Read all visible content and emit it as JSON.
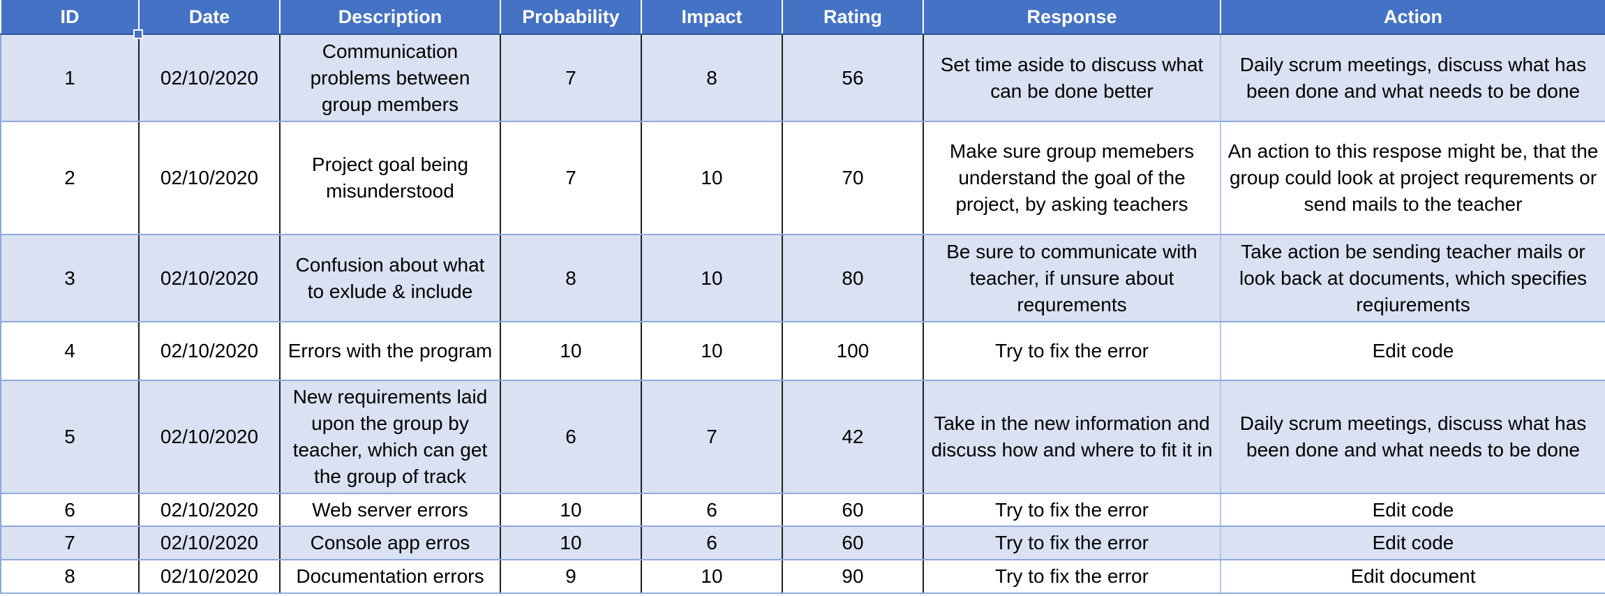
{
  "headers": [
    "ID",
    "Date",
    "Description",
    "Probability",
    "Impact",
    "Rating",
    "Response",
    "Action"
  ],
  "rows": [
    {
      "id": "1",
      "date": "02/10/2020",
      "description": "Communication problems between group members",
      "probability": "7",
      "impact": "8",
      "rating": "56",
      "response": "Set time aside to discuss what can be done better",
      "action": "Daily scrum meetings, discuss what has been done and what needs to be done"
    },
    {
      "id": "2",
      "date": "02/10/2020",
      "description": "Project goal being misunderstood",
      "probability": "7",
      "impact": "10",
      "rating": "70",
      "response": "Make sure group memebers understand the goal of the project, by asking teachers",
      "action": "An action to this respose might be, that the group could look at project requrements or send mails to the teacher"
    },
    {
      "id": "3",
      "date": "02/10/2020",
      "description": "Confusion about what to exlude & include",
      "probability": "8",
      "impact": "10",
      "rating": "80",
      "response": "Be sure to communicate with teacher, if unsure about requrements",
      "action": "Take action be sending teacher mails or look back at documents, which specifies reqiurements"
    },
    {
      "id": "4",
      "date": "02/10/2020",
      "description": "Errors with the program",
      "probability": "10",
      "impact": "10",
      "rating": "100",
      "response": "Try to fix the error",
      "action": "Edit code"
    },
    {
      "id": "5",
      "date": "02/10/2020",
      "description": "New requirements laid upon the group by teacher, which can get the group of track",
      "probability": "6",
      "impact": "7",
      "rating": "42",
      "response": "Take in the new information and discuss how and where to fit it in",
      "action": "Daily scrum meetings, discuss what has been done and what needs to be done"
    },
    {
      "id": "6",
      "date": "02/10/2020",
      "description": "Web server errors",
      "probability": "10",
      "impact": "6",
      "rating": "60",
      "response": "Try to fix the error",
      "action": "Edit code"
    },
    {
      "id": "7",
      "date": "02/10/2020",
      "description": "Console app erros",
      "probability": "10",
      "impact": "6",
      "rating": "60",
      "response": "Try to fix the error",
      "action": "Edit code"
    },
    {
      "id": "8",
      "date": "02/10/2020",
      "description": "Documentation errors",
      "probability": "9",
      "impact": "10",
      "rating": "90",
      "response": "Try to fix the error",
      "action": "Edit document"
    }
  ],
  "colors": {
    "header": "#4472c4",
    "band": "#d9e1f2",
    "plain": "#ffffff"
  }
}
